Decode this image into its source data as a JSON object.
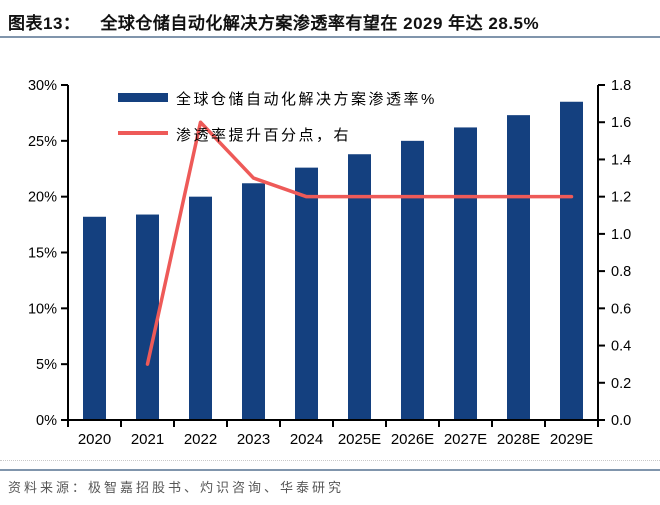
{
  "header": {
    "figure_label": "图表13：",
    "title": "全球仓储自动化解决方案渗透率有望在 2029 年达 28.5%"
  },
  "footer": {
    "source": "资料来源：极智嘉招股书、灼识咨询、华泰研究"
  },
  "colors": {
    "bar": "#14407F",
    "line": "#EE5A58",
    "axis": "#000000",
    "divider": "#8095AC",
    "source_text": "#575757"
  },
  "chart_data": {
    "type": "bar",
    "subtype": "bar-line-combo",
    "categories": [
      "2020",
      "2021",
      "2022",
      "2023",
      "2024",
      "2025E",
      "2026E",
      "2027E",
      "2028E",
      "2029E"
    ],
    "series": [
      {
        "name": "全球仓储自动化解决方案渗透率%",
        "type": "bar",
        "axis": "left",
        "color": "#14407F",
        "values": [
          18.2,
          18.4,
          20.0,
          21.2,
          22.6,
          23.8,
          25.0,
          26.2,
          27.3,
          28.5
        ]
      },
      {
        "name": "渗透率提升百分点，右",
        "type": "line",
        "axis": "right",
        "color": "#EE5A58",
        "values": [
          null,
          0.3,
          1.6,
          1.3,
          1.2,
          1.2,
          1.2,
          1.2,
          1.2,
          1.2
        ]
      }
    ],
    "left_axis": {
      "min": 0,
      "max": 30,
      "step": 5,
      "format": "percent",
      "tick_labels": [
        "0%",
        "5%",
        "10%",
        "15%",
        "20%",
        "25%",
        "30%"
      ]
    },
    "right_axis": {
      "min": 0,
      "max": 1.8,
      "step": 0.2,
      "tick_labels": [
        "0.0",
        "0.2",
        "0.4",
        "0.6",
        "0.8",
        "1.0",
        "1.2",
        "1.4",
        "1.6",
        "1.8"
      ]
    },
    "grid": false,
    "legend_position": "inside-top-left"
  }
}
